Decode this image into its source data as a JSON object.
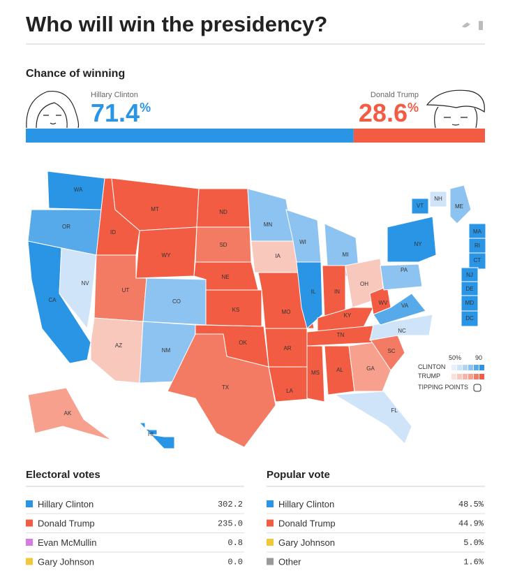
{
  "header": {
    "title": "Who will win the presidency?"
  },
  "chance": {
    "heading": "Chance of winning",
    "clinton": {
      "name": "Hillary Clinton",
      "value": 71.4,
      "unit": "%",
      "color": "#2a95e5"
    },
    "trump": {
      "name": "Donald Trump",
      "value": 28.6,
      "unit": "%",
      "color": "#f25c42"
    }
  },
  "map": {
    "states": [
      {
        "label": "WA",
        "color": "#2a95e5"
      },
      {
        "label": "OR",
        "color": "#56aaea"
      },
      {
        "label": "CA",
        "color": "#2a95e5"
      },
      {
        "label": "NV",
        "color": "#cfe4f8"
      },
      {
        "label": "ID",
        "color": "#f25c42"
      },
      {
        "label": "MT",
        "color": "#f25c42"
      },
      {
        "label": "WY",
        "color": "#f25c42"
      },
      {
        "label": "UT",
        "color": "#f47b63"
      },
      {
        "label": "AZ",
        "color": "#f9c8bc"
      },
      {
        "label": "CO",
        "color": "#8dc3f0"
      },
      {
        "label": "NM",
        "color": "#8dc3f0"
      },
      {
        "label": "ND",
        "color": "#f25c42"
      },
      {
        "label": "SD",
        "color": "#f47b63"
      },
      {
        "label": "NE",
        "color": "#f25c42"
      },
      {
        "label": "KS",
        "color": "#f25c42"
      },
      {
        "label": "OK",
        "color": "#f25c42"
      },
      {
        "label": "TX",
        "color": "#f47b63"
      },
      {
        "label": "MN",
        "color": "#8dc3f0"
      },
      {
        "label": "IA",
        "color": "#f9c8bc"
      },
      {
        "label": "MO",
        "color": "#f25c42"
      },
      {
        "label": "AR",
        "color": "#f25c42"
      },
      {
        "label": "LA",
        "color": "#f25c42"
      },
      {
        "label": "WI",
        "color": "#8dc3f0"
      },
      {
        "label": "IL",
        "color": "#2a95e5"
      },
      {
        "label": "MI",
        "color": "#8dc3f0"
      },
      {
        "label": "IN",
        "color": "#f25c42"
      },
      {
        "label": "OH",
        "color": "#f9c8bc"
      },
      {
        "label": "KY",
        "color": "#f25c42"
      },
      {
        "label": "TN",
        "color": "#f25c42"
      },
      {
        "label": "MS",
        "color": "#f25c42"
      },
      {
        "label": "AL",
        "color": "#f25c42"
      },
      {
        "label": "GA",
        "color": "#f7a08e"
      },
      {
        "label": "FL",
        "color": "#cfe4f8"
      },
      {
        "label": "SC",
        "color": "#f47b63"
      },
      {
        "label": "NC",
        "color": "#cfe4f8"
      },
      {
        "label": "WV",
        "color": "#f25c42"
      },
      {
        "label": "VA",
        "color": "#56aaea"
      },
      {
        "label": "PA",
        "color": "#8dc3f0"
      },
      {
        "label": "NY",
        "color": "#2a95e5"
      },
      {
        "label": "VT",
        "color": "#2a95e5"
      },
      {
        "label": "NH",
        "color": "#cfe4f8"
      },
      {
        "label": "ME",
        "color": "#8dc3f0"
      },
      {
        "label": "MA",
        "color": "#2a95e5"
      },
      {
        "label": "RI",
        "color": "#2a95e5"
      },
      {
        "label": "CT",
        "color": "#2a95e5"
      },
      {
        "label": "NJ",
        "color": "#2a95e5"
      },
      {
        "label": "DE",
        "color": "#2a95e5"
      },
      {
        "label": "MD",
        "color": "#2a95e5"
      },
      {
        "label": "DC",
        "color": "#2a95e5"
      },
      {
        "label": "AK",
        "color": "#f7a08e"
      },
      {
        "label": "HI",
        "color": "#2a95e5"
      }
    ],
    "legend": {
      "low": "50%",
      "high": "90",
      "clinton": "CLINTON",
      "trump": "TRUMP",
      "tipping": "TIPPING POINTS"
    }
  },
  "electoral": {
    "heading": "Electoral votes",
    "rows": [
      {
        "name": "Hillary Clinton",
        "value": "302.2",
        "color": "#2a95e5"
      },
      {
        "name": "Donald Trump",
        "value": "235.0",
        "color": "#f25c42"
      },
      {
        "name": "Evan McMullin",
        "value": "0.8",
        "color": "#d77be0"
      },
      {
        "name": "Gary Johnson",
        "value": "0.0",
        "color": "#f2c83a"
      }
    ]
  },
  "popular": {
    "heading": "Popular vote",
    "rows": [
      {
        "name": "Hillary Clinton",
        "value": "48.5%",
        "color": "#2a95e5"
      },
      {
        "name": "Donald Trump",
        "value": "44.9%",
        "color": "#f25c42"
      },
      {
        "name": "Gary Johnson",
        "value": "5.0%",
        "color": "#f2c83a"
      },
      {
        "name": "Other",
        "value": "1.6%",
        "color": "#999999"
      }
    ]
  }
}
